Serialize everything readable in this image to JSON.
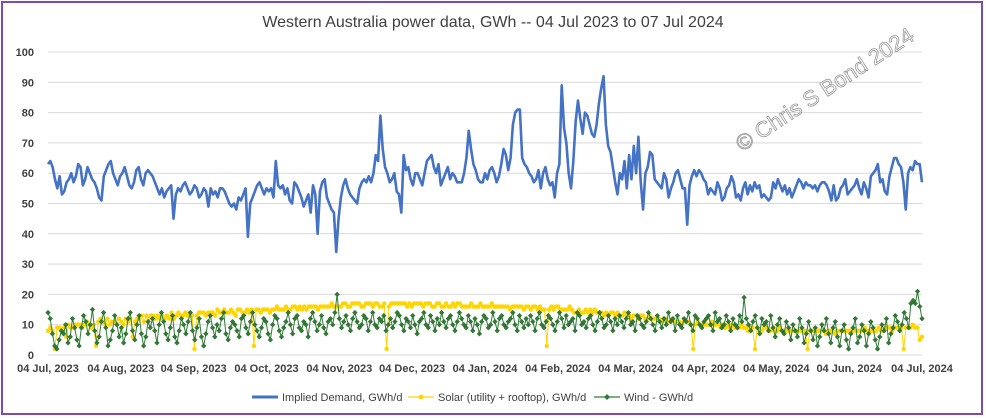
{
  "chart_data": {
    "type": "line",
    "title": "Western Australia power data, GWh  --  04 Jul 2023 to 07 Jul 2024",
    "xlabel": "",
    "ylabel": "",
    "ylim": [
      0,
      100
    ],
    "y_ticks": [
      "0",
      "10",
      "20",
      "30",
      "40",
      "50",
      "60",
      "70",
      "80",
      "90",
      "100"
    ],
    "x_ticks": [
      "04 Jul, 2023",
      "04 Aug, 2023",
      "04 Sep, 2023",
      "04 Oct, 2023",
      "04 Nov, 2023",
      "04 Dec, 2023",
      "04 Jan, 2024",
      "04 Feb, 2024",
      "04 Mar, 2024",
      "04 Apr, 2024",
      "04 May, 2024",
      "04 Jun, 2024",
      "04 Jul, 2024"
    ],
    "grid": "horizontal",
    "legend_position": "bottom",
    "watermark": "© Chris S Bond  2024",
    "series": [
      {
        "name": "Implied Demand, GWh/d",
        "color": "#4472c4",
        "marker": "none",
        "values": [
          63,
          64,
          62,
          58,
          55,
          59,
          53,
          54,
          57,
          58,
          60,
          57,
          59,
          63,
          62,
          56,
          58,
          62,
          60,
          58,
          57,
          55,
          52,
          51,
          59,
          61,
          63,
          64,
          60,
          58,
          56,
          59,
          60,
          62,
          59,
          56,
          55,
          57,
          61,
          62,
          58,
          56,
          60,
          61,
          60,
          59,
          57,
          55,
          53,
          55,
          52,
          54,
          55,
          56,
          45,
          53,
          55,
          54,
          56,
          57,
          55,
          53,
          54,
          56,
          55,
          52,
          53,
          55,
          54,
          49,
          55,
          53,
          54,
          52,
          55,
          55,
          54,
          52,
          50,
          49,
          50,
          48,
          52,
          51,
          53,
          55,
          39,
          50,
          52,
          54,
          56,
          57,
          55,
          53,
          55,
          54,
          55,
          52,
          64,
          56,
          55,
          56,
          53,
          55,
          51,
          50,
          57,
          56,
          54,
          52,
          49,
          51,
          53,
          47,
          56,
          53,
          40,
          54,
          57,
          58,
          52,
          50,
          48,
          47,
          34,
          45,
          52,
          56,
          58,
          55,
          53,
          52,
          51,
          50,
          55,
          57,
          58,
          57,
          59,
          57,
          60,
          66,
          64,
          79,
          68,
          62,
          60,
          57,
          58,
          60,
          54,
          53,
          47,
          66,
          61,
          62,
          58,
          56,
          60,
          60,
          58,
          56,
          60,
          64,
          65,
          66,
          62,
          60,
          63,
          56,
          58,
          60,
          62,
          58,
          60,
          59,
          57,
          57,
          57,
          60,
          65,
          74,
          68,
          63,
          61,
          58,
          57,
          57,
          60,
          58,
          61,
          62,
          60,
          57,
          59,
          63,
          68,
          66,
          61,
          65,
          76,
          80,
          81,
          81,
          65,
          63,
          62,
          60,
          59,
          57,
          58,
          61,
          55,
          60,
          62,
          58,
          56,
          57,
          52,
          60,
          63,
          89,
          75,
          70,
          60,
          55,
          64,
          77,
          84,
          78,
          73,
          80,
          79,
          76,
          73,
          72,
          76,
          83,
          88,
          92,
          76,
          69,
          67,
          62,
          57,
          53,
          60,
          58,
          64,
          55,
          66,
          58,
          69,
          60,
          72,
          57,
          48,
          60,
          62,
          67,
          66,
          58,
          57,
          56,
          55,
          60,
          58,
          52,
          55,
          57,
          60,
          61,
          58,
          55,
          55,
          43,
          56,
          59,
          61,
          59,
          61,
          60,
          58,
          57,
          53,
          55,
          54,
          53,
          57,
          55,
          51,
          52,
          55,
          56,
          59,
          57,
          52,
          53,
          51,
          55,
          57,
          53,
          56,
          54,
          57,
          55,
          56,
          52,
          53,
          52,
          51,
          52,
          57,
          55,
          58,
          56,
          54,
          56,
          53,
          55,
          52,
          54,
          56,
          58,
          57,
          55,
          57,
          56,
          56,
          55,
          56,
          54,
          56,
          57,
          57,
          56,
          54,
          51,
          56,
          51,
          52,
          55,
          56,
          58,
          53,
          54,
          55,
          56,
          58,
          55,
          53,
          57,
          55,
          52,
          59,
          60,
          61,
          63,
          57,
          58,
          54,
          53,
          59,
          62,
          65,
          65,
          63,
          62,
          57,
          48,
          60,
          62,
          61,
          64,
          63,
          63,
          57
        ]
      },
      {
        "name": "Solar (utility + rooftop), GWh/d",
        "color": "#ffd500",
        "marker": "circle",
        "values": [
          8,
          9,
          8,
          2,
          9,
          9,
          8,
          9,
          6,
          10,
          9,
          9,
          10,
          10,
          10,
          9,
          10,
          11,
          10,
          9,
          10,
          3,
          11,
          12,
          11,
          10,
          12,
          10,
          11,
          11,
          10,
          12,
          11,
          10,
          12,
          11,
          12,
          6,
          11,
          12,
          12,
          13,
          11,
          13,
          12,
          13,
          13,
          12,
          13,
          12,
          13,
          12,
          13,
          12,
          14,
          12,
          13,
          14,
          13,
          13,
          14,
          13,
          14,
          13,
          2,
          13,
          14,
          14,
          14,
          13,
          14,
          14,
          14,
          13,
          15,
          14,
          14,
          15,
          14,
          14,
          15,
          14,
          13,
          15,
          15,
          14,
          14,
          15,
          14,
          15,
          3,
          15,
          15,
          14,
          15,
          15,
          15,
          14,
          15,
          15,
          16,
          15,
          15,
          15,
          16,
          15,
          15,
          16,
          16,
          15,
          16,
          15,
          16,
          15,
          16,
          16,
          16,
          16,
          15,
          16,
          16,
          16,
          16,
          16,
          17,
          16,
          16,
          16,
          16,
          17,
          17,
          16,
          16,
          17,
          17,
          17,
          17,
          16,
          16,
          17,
          17,
          17,
          16,
          17,
          17,
          16,
          16,
          17,
          2,
          16,
          17,
          17,
          17,
          17,
          17,
          17,
          17,
          16,
          17,
          16,
          17,
          17,
          17,
          17,
          16,
          17,
          17,
          17,
          16,
          16,
          17,
          17,
          16,
          16,
          17,
          16,
          16,
          17,
          16,
          17,
          17,
          16,
          16,
          16,
          16,
          17,
          16,
          16,
          16,
          17,
          16,
          16,
          16,
          16,
          17,
          16,
          16,
          16,
          16,
          16,
          16,
          16,
          15,
          16,
          16,
          16,
          16,
          16,
          15,
          16,
          16,
          15,
          16,
          16,
          15,
          16,
          15,
          15,
          3,
          15,
          16,
          15,
          16,
          16,
          15,
          15,
          15,
          15,
          16,
          15,
          14,
          14,
          15,
          14,
          14,
          15,
          14,
          15,
          14,
          15,
          14,
          14,
          14,
          13,
          14,
          13,
          14,
          14,
          13,
          14,
          13,
          13,
          14,
          13,
          13,
          12,
          13,
          13,
          12,
          13,
          13,
          12,
          12,
          13,
          12,
          12,
          12,
          12,
          11,
          12,
          12,
          11,
          11,
          12,
          11,
          11,
          11,
          10,
          11,
          11,
          11,
          10,
          2,
          10,
          11,
          10,
          10,
          10,
          10,
          10,
          11,
          10,
          10,
          10,
          9,
          10,
          9,
          10,
          9,
          10,
          9,
          9,
          9,
          10,
          9,
          9,
          8,
          9,
          9,
          2,
          9,
          8,
          8,
          9,
          9,
          8,
          8,
          9,
          8,
          8,
          9,
          8,
          8,
          8,
          8,
          8,
          8,
          8,
          8,
          8,
          8,
          8,
          2,
          8,
          8,
          8,
          8,
          8,
          8,
          8,
          7,
          8,
          8,
          8,
          7,
          8,
          8,
          8,
          8,
          8,
          8,
          8,
          8,
          8,
          8,
          8,
          8,
          9,
          8,
          8,
          8,
          8,
          8,
          9,
          8,
          8,
          9,
          9,
          9,
          8,
          9,
          9,
          9,
          9,
          2,
          9,
          9,
          9,
          10,
          9,
          9,
          5,
          6
        ]
      },
      {
        "name": "Wind -  GWh/d",
        "color": "#2e7d32",
        "marker": "diamond",
        "values": [
          14,
          12,
          7,
          3,
          2,
          5,
          8,
          7,
          10,
          4,
          6,
          12,
          9,
          5,
          3,
          9,
          13,
          11,
          7,
          10,
          15,
          8,
          4,
          6,
          11,
          14,
          9,
          3,
          5,
          8,
          13,
          10,
          6,
          9,
          4,
          7,
          12,
          14,
          8,
          5,
          10,
          13,
          7,
          3,
          6,
          11,
          9,
          12,
          8,
          4,
          10,
          14,
          11,
          7,
          5,
          9,
          13,
          6,
          4,
          8,
          12,
          10,
          7,
          11,
          14,
          8,
          5,
          9,
          12,
          6,
          3,
          7,
          11,
          13,
          9,
          6,
          10,
          8,
          12,
          14,
          7,
          5,
          9,
          11,
          10,
          8,
          6,
          12,
          13,
          9,
          7,
          11,
          14,
          10,
          8,
          6,
          9,
          12,
          11,
          7,
          5,
          10,
          13,
          12,
          8,
          6,
          9,
          11,
          14,
          10,
          7,
          12,
          13,
          9,
          8,
          11,
          10,
          6,
          12,
          14,
          11,
          8,
          10,
          13,
          9,
          7,
          11,
          12,
          10,
          14,
          20,
          12,
          9,
          11,
          13,
          10,
          8,
          12,
          14,
          11,
          9,
          10,
          13,
          12,
          8,
          11,
          14,
          10,
          9,
          12,
          11,
          13,
          8,
          10,
          12,
          9,
          11,
          14,
          13,
          10,
          8,
          12,
          11,
          9,
          13,
          10,
          7,
          11,
          12,
          14,
          10,
          9,
          13,
          11,
          8,
          12,
          10,
          14,
          11,
          9,
          12,
          13,
          10,
          8,
          11,
          14,
          12,
          10,
          9,
          13,
          11,
          8,
          12,
          10,
          7,
          11,
          13,
          12,
          9,
          10,
          14,
          11,
          8,
          12,
          13,
          10,
          9,
          11,
          12,
          14,
          10,
          8,
          13,
          11,
          9,
          12,
          10,
          13,
          11,
          8,
          12,
          14,
          10,
          9,
          11,
          13,
          12,
          10,
          8,
          11,
          14,
          12,
          9,
          13,
          10,
          11,
          12,
          8,
          14,
          13,
          10,
          11,
          9,
          12,
          13,
          10,
          8,
          11,
          14,
          12,
          9,
          10,
          13,
          11,
          8,
          12,
          10,
          13,
          11,
          9,
          12,
          14,
          10,
          11,
          8,
          13,
          12,
          10,
          9,
          11,
          14,
          12,
          10,
          8,
          13,
          11,
          9,
          12,
          10,
          14,
          11,
          12,
          8,
          13,
          10,
          9,
          12,
          11,
          14,
          10,
          8,
          13,
          12,
          10,
          9,
          11,
          12,
          13,
          10,
          8,
          14,
          11,
          12,
          9,
          10,
          13,
          11,
          8,
          12,
          10,
          9,
          13,
          11,
          19,
          12,
          10,
          8,
          11,
          13,
          9,
          7,
          12,
          10,
          11,
          8,
          13,
          9,
          6,
          10,
          12,
          8,
          7,
          11,
          9,
          5,
          10,
          8,
          6,
          12,
          9,
          4,
          7,
          11,
          8,
          5,
          9,
          3,
          6,
          10,
          8,
          12,
          7,
          4,
          9,
          11,
          6,
          3,
          8,
          10,
          5,
          2,
          7,
          9,
          12,
          4,
          6,
          10,
          8,
          3,
          7,
          11,
          9,
          5,
          2,
          6,
          10,
          8,
          12,
          4,
          7,
          9,
          13,
          11,
          8,
          10,
          14,
          12,
          9,
          17,
          18,
          17,
          21,
          16,
          12
        ]
      }
    ]
  }
}
